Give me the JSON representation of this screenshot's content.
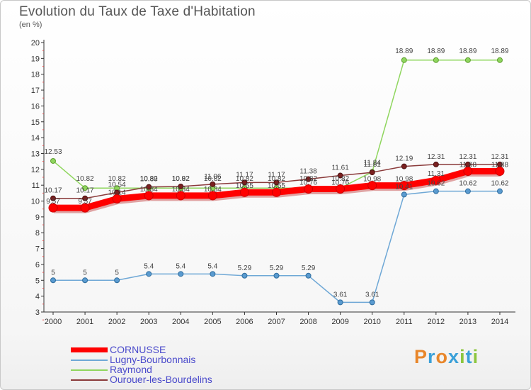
{
  "header": {
    "title": "Evolution du Taux de Taxe d'Habitation",
    "subtitle": "(en %)"
  },
  "logo": {
    "text": "Proxiti",
    "colors": [
      "#e8862a",
      "#3aa0d8",
      "#e8862a",
      "#3aa0d8",
      "#8cc63f",
      "#3aa0d8",
      "#8cc63f"
    ]
  },
  "chart_data": {
    "type": "line",
    "title": "Evolution du Taux de Taxe d'Habitation",
    "ylabel": "(en %)",
    "xlabel": "",
    "x": [
      "2000",
      "2001",
      "2002",
      "2003",
      "2004",
      "2005",
      "2006",
      "2007",
      "2008",
      "2009",
      "2010",
      "2011",
      "2012",
      "2013",
      "2014"
    ],
    "ylim": [
      3,
      20
    ],
    "yticks": [
      "3",
      "4",
      "5",
      "6",
      "7",
      "8",
      "9",
      "10",
      "11",
      "12",
      "13",
      "14",
      "15",
      "16",
      "17",
      "18",
      "19",
      "20"
    ],
    "grid": false,
    "legend": "bottom-left",
    "series": [
      {
        "name": "CORNUSSE",
        "color": "#ff0000",
        "values": [
          9.57,
          9.57,
          10.14,
          10.34,
          10.34,
          10.34,
          10.55,
          10.55,
          10.76,
          10.76,
          10.98,
          10.98,
          11.31,
          11.88,
          11.88
        ],
        "labels": [
          "9.57",
          "9.57",
          "10.14",
          "10.34",
          "10.34",
          "10.34",
          "10.55",
          "10.55",
          "10.76",
          "10.76",
          "10.98",
          "10.98",
          "11.31",
          "11.88",
          "11.88"
        ]
      },
      {
        "name": "Lugny-Bourbonnais",
        "color": "#6fa8d6",
        "values": [
          5,
          5,
          5,
          5.4,
          5.4,
          5.4,
          5.29,
          5.29,
          5.29,
          3.61,
          3.61,
          10.41,
          10.62,
          10.62,
          10.62
        ],
        "labels": [
          "5",
          "5",
          "5",
          "5.4",
          "5.4",
          "5.4",
          "5.29",
          "5.29",
          "5.29",
          "3.61",
          "3.61",
          "10.41",
          "10.62",
          "10.62",
          "10.62"
        ]
      },
      {
        "name": "Raymond",
        "color": "#8fd65e",
        "values": [
          12.53,
          10.82,
          10.82,
          10.82,
          10.82,
          10.82,
          10.82,
          10.82,
          10.82,
          10.82,
          11.84,
          18.89,
          18.89,
          18.89,
          18.89
        ],
        "labels": [
          "12.53",
          "10.82",
          "10.82",
          "10.82",
          "10.82",
          "10.82",
          "10.82",
          "10.82",
          "10.82",
          "10.82",
          "11.84",
          "18.89",
          "18.89",
          "18.89",
          "18.89"
        ]
      },
      {
        "name": "Ourouer-les-Bourdelins",
        "color": "#8a3a3a",
        "values": [
          10.17,
          10.17,
          10.54,
          10.89,
          10.92,
          11.06,
          11.17,
          11.17,
          11.38,
          11.61,
          11.81,
          12.19,
          12.31,
          12.31,
          12.31
        ],
        "labels": [
          "10.17",
          "10.17",
          "10.54",
          "10.89",
          "10.92",
          "11.06",
          "11.17",
          "11.17",
          "11.38",
          "11.61",
          "11.81",
          "12.19",
          "12.31",
          "12.31",
          "12.31"
        ]
      }
    ]
  }
}
